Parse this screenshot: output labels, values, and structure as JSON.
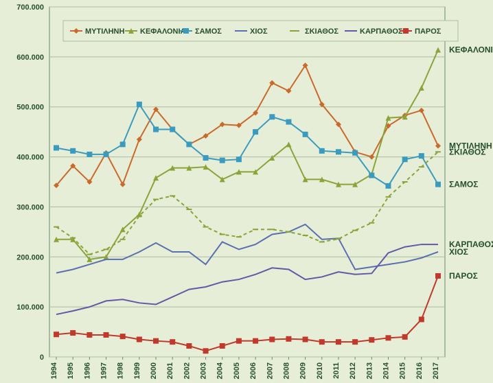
{
  "chart": {
    "type": "line",
    "background_color": "#e6eed7",
    "plot_background_color": "#e6eed7",
    "grid_color": "#a9bda0",
    "axis_line_color": "#6b8b6b",
    "ylim": [
      0,
      700000
    ],
    "ytick_step": 100000,
    "ytick_labels": [
      "0",
      "100.000",
      "200.000",
      "300.000",
      "400.000",
      "500.000",
      "600.000",
      "700.000"
    ],
    "categories": [
      "1994",
      "1995",
      "1996",
      "1997",
      "1998",
      "1999",
      "2000",
      "2001",
      "2002",
      "2003",
      "2004",
      "2005",
      "2006",
      "2007",
      "2008",
      "2009",
      "2010",
      "2011",
      "2012",
      "2013",
      "2014",
      "2015",
      "2016",
      "2017"
    ],
    "label_fontsize": 11,
    "tick_fontsize": 11,
    "legend": {
      "position": "top-left",
      "background": "#e6eed7",
      "border_color": "#a9bda0",
      "items": [
        "ΜΥΤΙΛΗΝΗ",
        "ΚΕΦΑΛΟΝΙΑ",
        "ΣΑΜΟΣ",
        "ΧΙΟΣ",
        "ΣΚΙΑΘΟΣ",
        "ΚΑΡΠΑΘΟΣ",
        "ΠΑΡΟΣ"
      ]
    },
    "series": [
      {
        "name": "ΜΥΤΙΛΗΝΗ",
        "color": "#c96a2b",
        "marker": "diamond",
        "dash": null,
        "line_width": 2,
        "end_label": "ΜΥΤΙΛΗΝΗ",
        "values": [
          343000,
          382000,
          350000,
          408000,
          345000,
          435000,
          495000,
          455000,
          425000,
          442000,
          465000,
          463000,
          488000,
          548000,
          532000,
          583000,
          505000,
          465000,
          410000,
          400000,
          462000,
          483000,
          493000,
          422000
        ]
      },
      {
        "name": "ΚΕΦΑΛΟΝΙΑ",
        "color": "#8aa43a",
        "marker": "triangle",
        "dash": null,
        "line_width": 2,
        "end_label": "ΚΕΦΑΛΟΝΙΑ",
        "values": [
          235000,
          235000,
          195000,
          200000,
          255000,
          285000,
          358000,
          378000,
          378000,
          380000,
          355000,
          370000,
          370000,
          398000,
          425000,
          355000,
          355000,
          345000,
          345000,
          365000,
          478000,
          480000,
          538000,
          614000
        ]
      },
      {
        "name": "ΣΑΜΟΣ",
        "color": "#3b9bbf",
        "marker": "square",
        "dash": null,
        "line_width": 2,
        "end_label": "ΣΑΜΟΣ",
        "values": [
          418000,
          412000,
          405000,
          405000,
          425000,
          505000,
          455000,
          455000,
          425000,
          398000,
          393000,
          395000,
          450000,
          480000,
          470000,
          445000,
          412000,
          410000,
          408000,
          363000,
          342000,
          395000,
          402000,
          345000
        ]
      },
      {
        "name": "ΧΙΟΣ",
        "color": "#5a6fb0",
        "marker": "none",
        "dash": null,
        "line_width": 2,
        "end_label": "ΧΙΟΣ",
        "values": [
          168000,
          175000,
          185000,
          195000,
          195000,
          210000,
          228000,
          210000,
          210000,
          185000,
          230000,
          215000,
          225000,
          245000,
          250000,
          265000,
          235000,
          237000,
          175000,
          180000,
          185000,
          190000,
          198000,
          210000
        ]
      },
      {
        "name": "ΣΚΙΑΘΟΣ",
        "color": "#8aa43a",
        "marker": "dash-marker",
        "dash": "5,4",
        "line_width": 2,
        "end_label": "ΣΚΙΑΘΟΣ",
        "values": [
          260000,
          238000,
          205000,
          215000,
          235000,
          282000,
          315000,
          322000,
          295000,
          260000,
          245000,
          240000,
          255000,
          255000,
          250000,
          243000,
          230000,
          236000,
          253000,
          268000,
          320000,
          350000,
          380000,
          410000
        ]
      },
      {
        "name": "ΚΑΡΠΑΘΟΣ",
        "color": "#6457a6",
        "marker": "none",
        "dash": null,
        "line_width": 2,
        "end_label": "ΚΑΡΠΑΘΟΣ",
        "values": [
          85000,
          92000,
          100000,
          112000,
          115000,
          108000,
          105000,
          120000,
          135000,
          140000,
          150000,
          155000,
          165000,
          178000,
          175000,
          155000,
          160000,
          170000,
          165000,
          167000,
          208000,
          220000,
          225000,
          225000
        ]
      },
      {
        "name": "ΠΑΡΟΣ",
        "color": "#c0392b",
        "marker": "square",
        "dash": null,
        "line_width": 2,
        "end_label": "ΠΑΡΟΣ",
        "values": [
          45000,
          48000,
          44000,
          44000,
          41000,
          35000,
          32000,
          30000,
          22000,
          12000,
          22000,
          32000,
          32000,
          35000,
          36000,
          35000,
          30000,
          30000,
          30000,
          34000,
          38000,
          40000,
          75000,
          162000
        ]
      }
    ]
  }
}
